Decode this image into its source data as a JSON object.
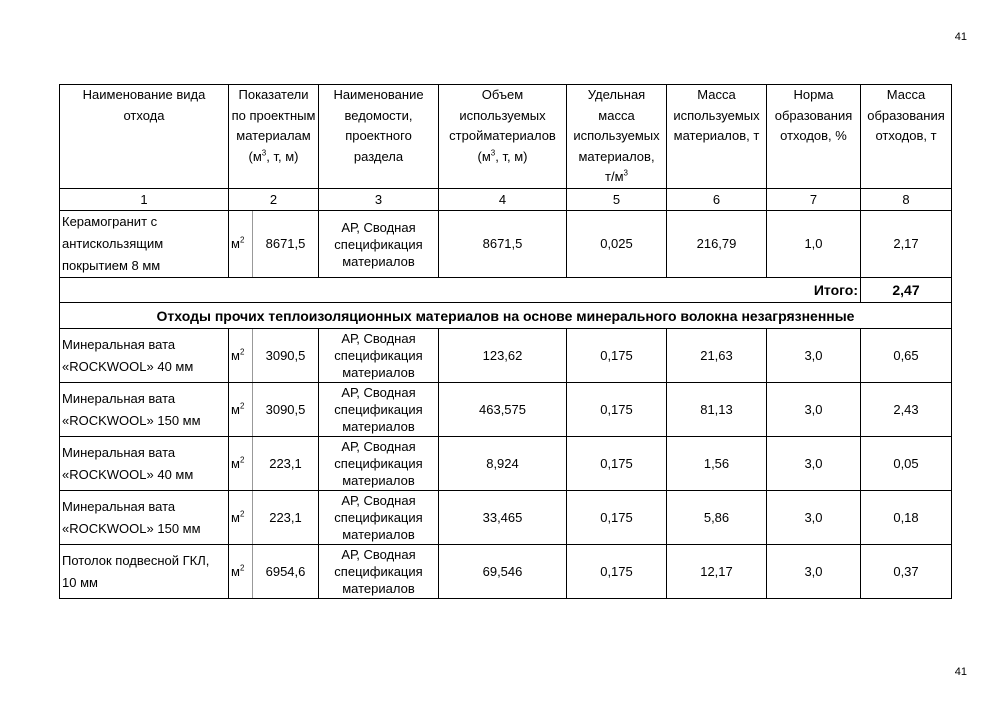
{
  "page_number": "41",
  "header": {
    "col1": "Наименование вида отхода",
    "col2": "Показатели по проектным материалам",
    "col2_unit": "(м3, т, м)",
    "col3": "Наименование ведомости, проектного раздела",
    "col4": "Объем используемых стройматериалов",
    "col4_unit": "(м3, т, м)",
    "col5": "Удельная масса используемых материалов,",
    "col5_unit": "т/м3",
    "col6": "Масса используемых материалов, т",
    "col7": "Норма образования отходов, %",
    "col8": "Масса образования отходов, т",
    "numbers": [
      "1",
      "2",
      "3",
      "4",
      "5",
      "6",
      "7",
      "8"
    ]
  },
  "rows_top": [
    {
      "name": "Керамогранит с антискользящим покрытием 8 мм",
      "unit": "м2",
      "qty": "8671,5",
      "source": "АР, Сводная спецификация материалов",
      "volume": "8671,5",
      "density": "0,025",
      "mass": "216,79",
      "norm": "1,0",
      "waste": "2,17"
    }
  ],
  "total": {
    "label": "Итого:",
    "value": "2,47"
  },
  "section_title": "Отходы прочих теплоизоляционных материалов на основе минерального волокна незагрязненные",
  "rows": [
    {
      "name": "Минеральная вата «ROCKWOOL» 40 мм",
      "unit": "м2",
      "qty": "3090,5",
      "source": "АР, Сводная спецификация материалов",
      "volume": "123,62",
      "density": "0,175",
      "mass": "21,63",
      "norm": "3,0",
      "waste": "0,65"
    },
    {
      "name": "Минеральная вата «ROCKWOOL» 150 мм",
      "unit": "м2",
      "qty": "3090,5",
      "source": "АР, Сводная спецификация материалов",
      "volume": "463,575",
      "density": "0,175",
      "mass": "81,13",
      "norm": "3,0",
      "waste": "2,43"
    },
    {
      "name": "Минеральная вата «ROCKWOOL» 40 мм",
      "unit": "м2",
      "qty": "223,1",
      "source": "АР, Сводная спецификация материалов",
      "volume": "8,924",
      "density": "0,175",
      "mass": "1,56",
      "norm": "3,0",
      "waste": "0,05"
    },
    {
      "name": "Минеральная вата «ROCKWOOL» 150 мм",
      "unit": "м2",
      "qty": "223,1",
      "source": "АР, Сводная спецификация материалов",
      "volume": "33,465",
      "density": "0,175",
      "mass": "5,86",
      "norm": "3,0",
      "waste": "0,18"
    },
    {
      "name": "Потолок подвесной ГКЛ, 10 мм",
      "unit": "м2",
      "qty": "6954,6",
      "source": "АР, Сводная спецификация материалов",
      "volume": "69,546",
      "density": "0,175",
      "mass": "12,17",
      "norm": "3,0",
      "waste": "0,37"
    }
  ]
}
